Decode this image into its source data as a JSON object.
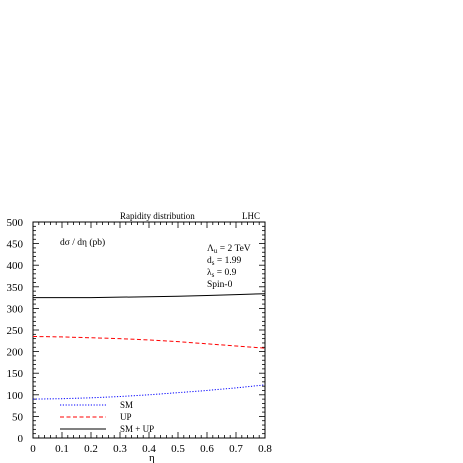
{
  "chart_data": {
    "type": "line",
    "title": "Rapidity distribution",
    "corner_label": "LHC",
    "ylabel": "dσ / dη (pb)",
    "xlabel": "η",
    "xlim": [
      0,
      0.8
    ],
    "ylim": [
      0,
      500
    ],
    "x_ticks": [
      "0",
      "0.1",
      "0.2",
      "0.3",
      "0.4",
      "0.5",
      "0.6",
      "0.7",
      "0.8"
    ],
    "y_ticks": [
      "0",
      "50",
      "100",
      "150",
      "200",
      "250",
      "300",
      "350",
      "400",
      "450",
      "500"
    ],
    "parameters": [
      {
        "sym": "Λ",
        "sub": "u",
        "rest": " = 2 TeV"
      },
      {
        "sym": "d",
        "sub": "s",
        "rest": " = 1.99"
      },
      {
        "sym": "λ",
        "sub": "s",
        "rest": " = 0.9"
      },
      {
        "sym": "Spin-0",
        "sub": "",
        "rest": ""
      }
    ],
    "legend_position": "bottom-left",
    "x": [
      0,
      0.1,
      0.2,
      0.3,
      0.4,
      0.5,
      0.6,
      0.7,
      0.8
    ],
    "series": [
      {
        "name": "SM",
        "color": "#0000ff",
        "style": "dotted",
        "values": [
          90,
          91,
          93,
          96,
          100,
          105,
          110,
          116,
          123
        ]
      },
      {
        "name": "UP",
        "color": "#ff0000",
        "style": "dashed",
        "values": [
          235,
          234,
          232,
          230,
          227,
          223,
          218,
          213,
          208
        ]
      },
      {
        "name": "SM + UP",
        "color": "#000000",
        "style": "solid",
        "values": [
          325,
          325,
          325,
          326,
          327,
          328,
          330,
          332,
          334
        ]
      }
    ]
  }
}
